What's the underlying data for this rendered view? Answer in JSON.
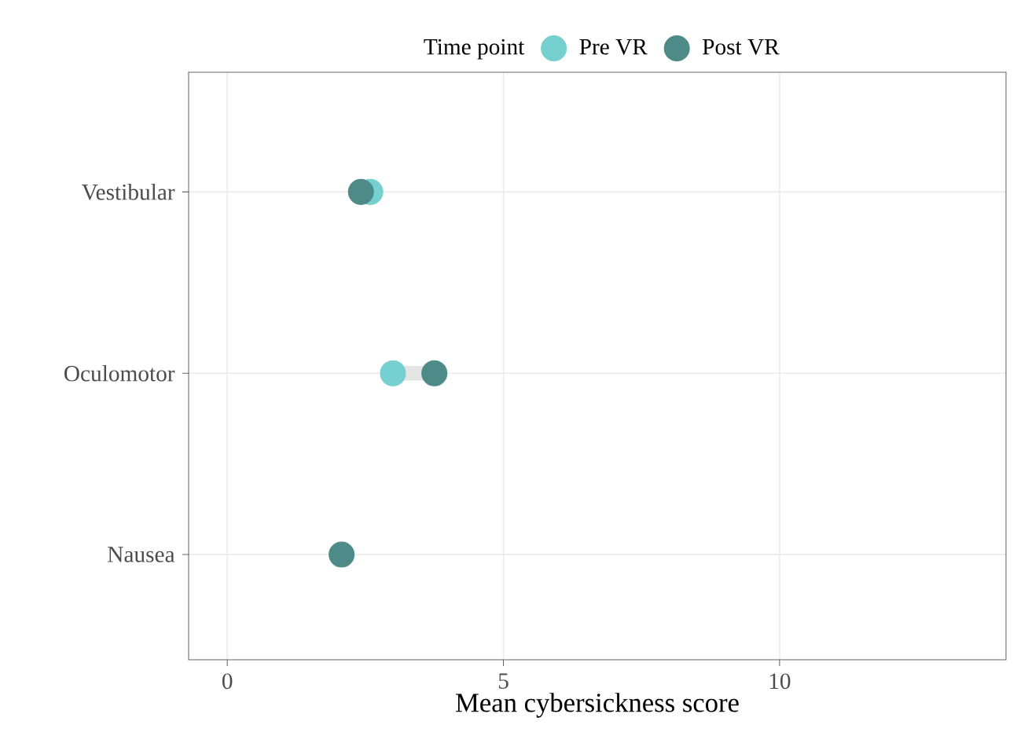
{
  "chart_data": {
    "type": "scatter",
    "orientation": "horizontal",
    "xlabel": "Mean cybersickness score",
    "legend_title": "Time point",
    "categories": [
      "Vestibular",
      "Oculomotor",
      "Nausea"
    ],
    "series": [
      {
        "name": "Pre VR",
        "color": "#76d0cf",
        "values": [
          2.59,
          3.0,
          null
        ]
      },
      {
        "name": "Post VR",
        "color": "#4e8b88",
        "values": [
          2.42,
          3.75,
          2.07
        ]
      }
    ],
    "xlim": [
      -0.7,
      14.1
    ],
    "xticks": [
      0,
      5,
      10
    ],
    "grid": true,
    "legend": "top"
  }
}
